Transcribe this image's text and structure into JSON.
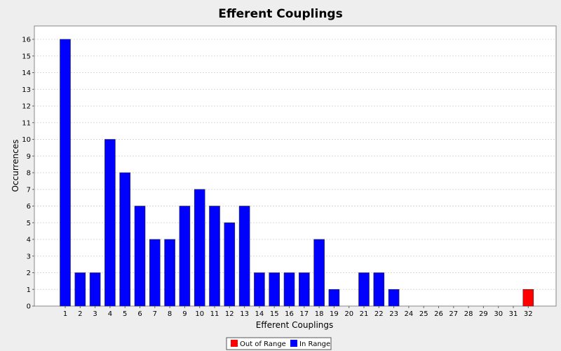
{
  "chart_data": {
    "type": "bar",
    "title": "Efferent Couplings",
    "xlabel": "Efferent Couplings",
    "ylabel": "Occurrences",
    "categories": [
      "1",
      "2",
      "3",
      "4",
      "5",
      "6",
      "7",
      "8",
      "9",
      "10",
      "11",
      "12",
      "13",
      "14",
      "15",
      "16",
      "17",
      "18",
      "19",
      "20",
      "21",
      "22",
      "23",
      "24",
      "25",
      "26",
      "27",
      "28",
      "29",
      "30",
      "31",
      "32"
    ],
    "series": [
      {
        "name": "Out of Range",
        "color": "#ff0000",
        "values": [
          0,
          0,
          0,
          0,
          0,
          0,
          0,
          0,
          0,
          0,
          0,
          0,
          0,
          0,
          0,
          0,
          0,
          0,
          0,
          0,
          0,
          0,
          0,
          0,
          0,
          0,
          0,
          0,
          0,
          0,
          0,
          1
        ]
      },
      {
        "name": "In Range",
        "color": "#0000ff",
        "values": [
          16,
          2,
          2,
          10,
          8,
          6,
          4,
          4,
          6,
          7,
          6,
          5,
          6,
          2,
          2,
          2,
          2,
          4,
          1,
          0,
          2,
          2,
          1,
          0,
          0,
          0,
          0,
          0,
          0,
          0,
          0,
          0
        ]
      }
    ],
    "ylim": [
      0,
      16.8
    ],
    "yticks": [
      0,
      1,
      2,
      3,
      4,
      5,
      6,
      7,
      8,
      9,
      10,
      11,
      12,
      13,
      14,
      15,
      16
    ],
    "grid": true,
    "legend_position": "bottom"
  }
}
